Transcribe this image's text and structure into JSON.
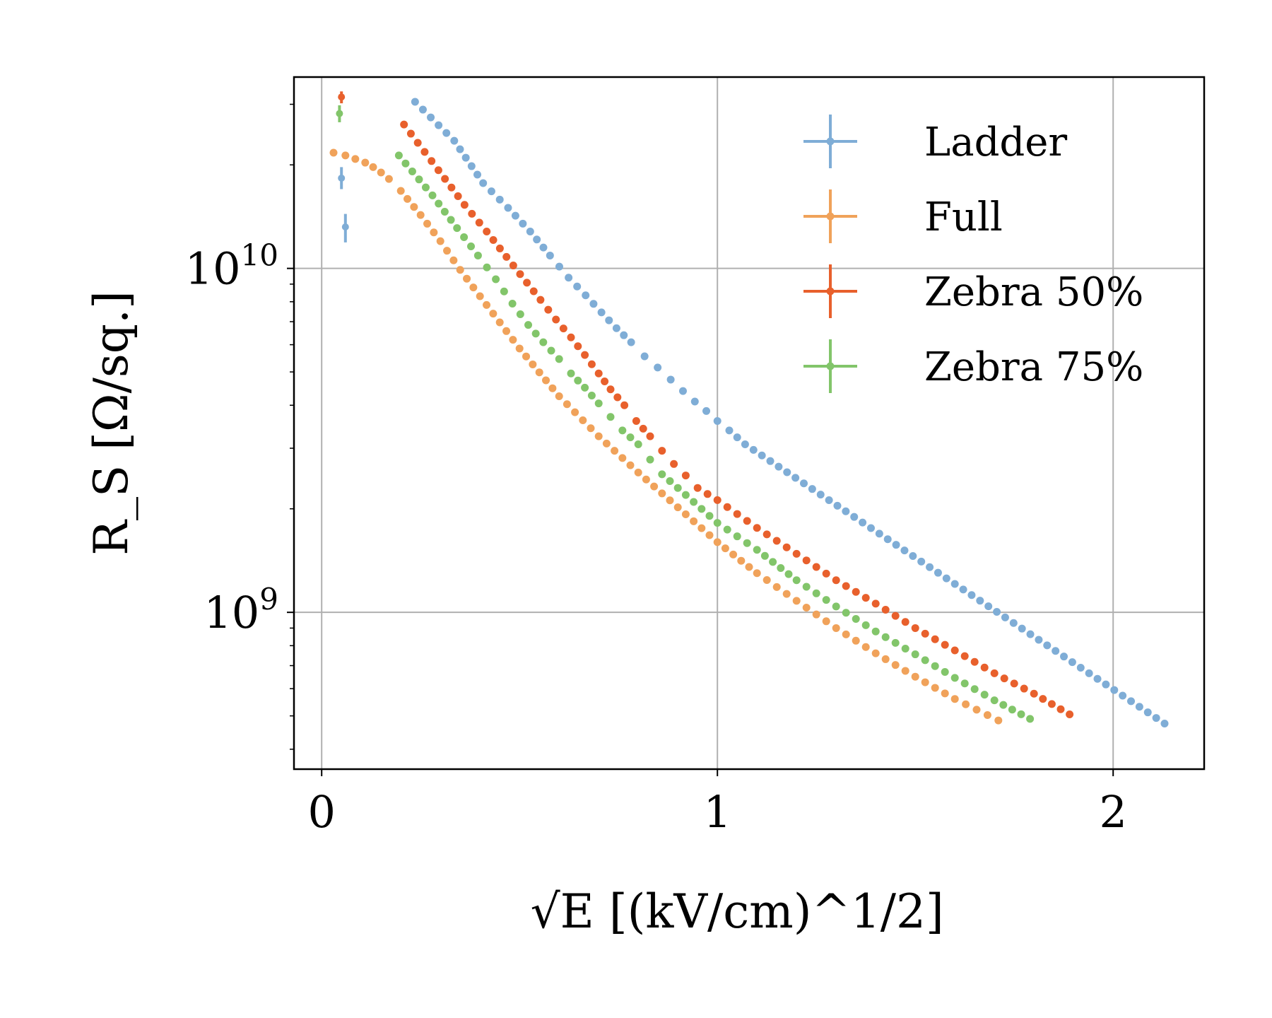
{
  "chart_data": {
    "type": "scatter",
    "xlabel": "√E [(kV/cm)^1/2]",
    "ylabel": "R_S [Ω/sq.]",
    "xlim": [
      -0.07,
      2.23
    ],
    "ylim": [
      350000000.0,
      36000000000.0
    ],
    "yscale": "log",
    "grid": true,
    "legend_position": "top-right",
    "x_ticks": [
      {
        "value": 0,
        "label": "0"
      },
      {
        "value": 1,
        "label": "1"
      },
      {
        "value": 2,
        "label": "2"
      }
    ],
    "y_ticks": [
      {
        "value": 1000000000.0,
        "base": "10",
        "exp": "9"
      },
      {
        "value": 10000000000.0,
        "base": "10",
        "exp": "10"
      }
    ],
    "series": [
      {
        "name": "Ladder",
        "color": "#7fadd6",
        "errors": [
          {
            "x": 0.05,
            "y": 18300000000.0,
            "ylo": 17000000000.0,
            "yhi": 19700000000.0
          },
          {
            "x": 0.06,
            "y": 13200000000.0,
            "ylo": 11900000000.0,
            "yhi": 14400000000.0
          }
        ],
        "points": [
          [
            0.236,
            30500000000.0
          ],
          [
            0.335,
            23500000000.0
          ],
          [
            0.408,
            17700000000.0
          ],
          [
            0.471,
            15000000000.0
          ],
          [
            0.527,
            12800000000.0
          ],
          [
            0.577,
            10900000000.0
          ],
          [
            0.624,
            9400000000.0
          ],
          [
            0.667,
            8350000000.0
          ],
          [
            0.707,
            7450000000.0
          ],
          [
            0.745,
            6700000000.0
          ],
          [
            0.782,
            6100000000.0
          ],
          [
            0.816,
            5550000000.0
          ],
          [
            0.849,
            5150000000.0
          ],
          [
            0.882,
            4750000000.0
          ],
          [
            0.913,
            4400000000.0
          ],
          [
            0.943,
            4100000000.0
          ],
          [
            0.972,
            3850000000.0
          ],
          [
            1.0,
            3600000000.0
          ],
          [
            1.03,
            3380000000.0
          ],
          [
            1.07,
            3080000000.0
          ],
          [
            2.13,
            475000000.0
          ]
        ]
      },
      {
        "name": "Full",
        "color": "#f0a25a",
        "errors": [],
        "points": [
          [
            0.03,
            21700000000.0
          ],
          [
            0.06,
            21300000000.0
          ],
          [
            0.085,
            20800000000.0
          ],
          [
            0.11,
            20300000000.0
          ],
          [
            0.13,
            19700000000.0
          ],
          [
            0.15,
            19000000000.0
          ],
          [
            0.17,
            18200000000.0
          ],
          [
            0.2,
            16800000000.0
          ],
          [
            0.25,
            14300000000.0
          ],
          [
            0.3,
            12000000000.0
          ],
          [
            0.35,
            9900000000.0
          ],
          [
            0.4,
            8300000000.0
          ],
          [
            0.5,
            5850000000.0
          ],
          [
            0.6,
            4250000000.0
          ],
          [
            0.7,
            3250000000.0
          ],
          [
            0.8,
            2550000000.0
          ],
          [
            0.9,
            2020000000.0
          ],
          [
            1.0,
            1600000000.0
          ],
          [
            1.1,
            1300000000.0
          ],
          [
            1.2,
            1080000000.0
          ],
          [
            1.3,
            900000000.0
          ],
          [
            1.4,
            760000000.0
          ],
          [
            1.5,
            650000000.0
          ],
          [
            1.6,
            560000000.0
          ],
          [
            1.71,
            485000000.0
          ]
        ]
      },
      {
        "name": "Zebra 50%",
        "color": "#e8602c",
        "errors": [
          {
            "x": 0.05,
            "y": 31500000000.0,
            "ylo": 30200000000.0,
            "yhi": 32700000000.0
          }
        ],
        "points": [
          [
            0.208,
            26200000000.0
          ],
          [
            0.295,
            19300000000.0
          ],
          [
            0.361,
            15300000000.0
          ],
          [
            0.417,
            12800000000.0
          ],
          [
            0.467,
            10800000000.0
          ],
          [
            0.553,
            8100000000.0
          ],
          [
            0.592,
            7100000000.0
          ],
          [
            0.63,
            6300000000.0
          ],
          [
            0.665,
            5600000000.0
          ],
          [
            0.7,
            4950000000.0
          ],
          [
            0.73,
            4450000000.0
          ],
          [
            0.765,
            4000000000.0
          ],
          [
            0.795,
            3600000000.0
          ],
          [
            0.83,
            3250000000.0
          ],
          [
            0.86,
            2950000000.0
          ],
          [
            0.89,
            2700000000.0
          ],
          [
            0.92,
            2500000000.0
          ],
          [
            0.95,
            2300000000.0
          ],
          [
            1.0,
            2120000000.0
          ],
          [
            1.1,
            1760000000.0
          ],
          [
            1.2,
            1480000000.0
          ],
          [
            1.3,
            1240000000.0
          ],
          [
            1.4,
            1060000000.0
          ],
          [
            1.5,
            900000000.0
          ],
          [
            1.6,
            775000000.0
          ],
          [
            1.7,
            665000000.0
          ],
          [
            1.8,
            580000000.0
          ],
          [
            1.89,
            505000000.0
          ]
        ]
      },
      {
        "name": "Zebra 75%",
        "color": "#82c56a",
        "errors": [
          {
            "x": 0.045,
            "y": 28200000000.0,
            "ylo": 26600000000.0,
            "yhi": 29800000000.0
          }
        ],
        "points": [
          [
            0.195,
            21300000000.0
          ],
          [
            0.28,
            16300000000.0
          ],
          [
            0.342,
            13100000000.0
          ],
          [
            0.395,
            10900000000.0
          ],
          [
            0.44,
            9300000000.0
          ],
          [
            0.482,
            7900000000.0
          ],
          [
            0.522,
            6850000000.0
          ],
          [
            0.56,
            6100000000.0
          ],
          [
            0.6,
            5450000000.0
          ],
          [
            0.63,
            4950000000.0
          ],
          [
            0.665,
            4500000000.0
          ],
          [
            0.7,
            4050000000.0
          ],
          [
            0.73,
            3700000000.0
          ],
          [
            0.76,
            3380000000.0
          ],
          [
            0.8,
            3080000000.0
          ],
          [
            0.83,
            2780000000.0
          ],
          [
            0.86,
            2520000000.0
          ],
          [
            0.9,
            2300000000.0
          ],
          [
            1.0,
            1820000000.0
          ],
          [
            1.1,
            1520000000.0
          ],
          [
            1.2,
            1240000000.0
          ],
          [
            1.3,
            1040000000.0
          ],
          [
            1.4,
            880000000.0
          ],
          [
            1.5,
            755000000.0
          ],
          [
            1.6,
            645000000.0
          ],
          [
            1.7,
            555000000.0
          ],
          [
            1.79,
            490000000.0
          ]
        ]
      }
    ]
  }
}
